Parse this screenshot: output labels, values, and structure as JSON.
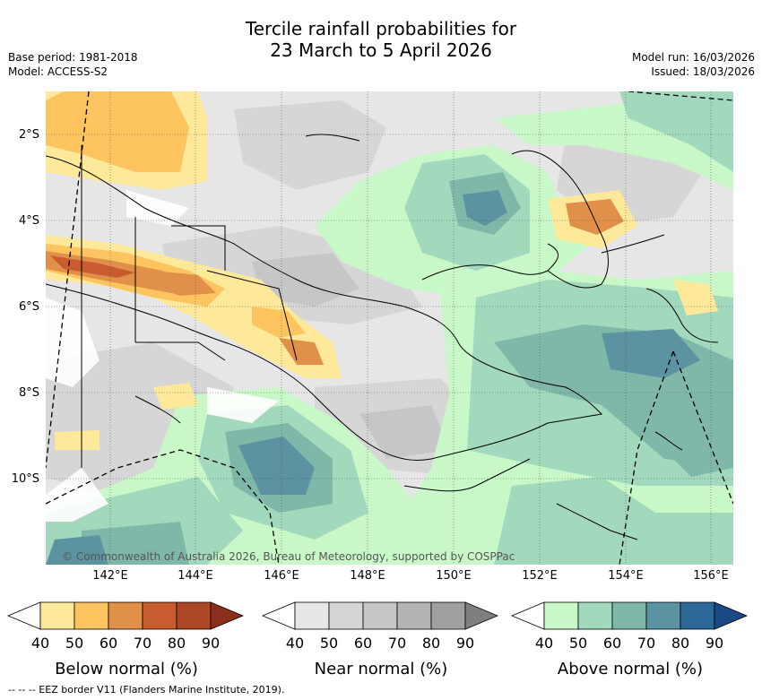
{
  "title_line1": "Tercile rainfall probabilities for",
  "title_line2": "23 March to 5 April 2026",
  "base_period": "Base period: 1981-2018",
  "model": "Model: ACCESS-S2",
  "model_run": "Model run: 16/03/2026",
  "issued": "Issued: 18/03/2026",
  "copyright": "© Commonwealth of Australia 2026, Bureau of Meteorology, supported by COSPPac",
  "lat_labels": [
    "2°S",
    "4°S",
    "6°S",
    "8°S",
    "10°S"
  ],
  "lon_labels": [
    "142°E",
    "144°E",
    "146°E",
    "148°E",
    "150°E",
    "152°E",
    "154°E",
    "156°E"
  ],
  "colorbars": [
    {
      "title": "Below normal (%)",
      "ticks": [
        "40",
        "50",
        "60",
        "70",
        "80",
        "90"
      ],
      "colors": [
        "#ffffff",
        "#fee89a",
        "#fdc45f",
        "#e1904a",
        "#c95c2e",
        "#ad4826",
        "#8c2e1a"
      ]
    },
    {
      "title": "Near normal (%)",
      "ticks": [
        "40",
        "50",
        "60",
        "70",
        "80",
        "90"
      ],
      "colors": [
        "#ffffff",
        "#e6e6e6",
        "#d6d6d6",
        "#c6c6c6",
        "#b4b4b4",
        "#a0a0a0",
        "#7e7e7e"
      ]
    },
    {
      "title": "Above normal (%)",
      "ticks": [
        "40",
        "50",
        "60",
        "70",
        "80",
        "90"
      ],
      "colors": [
        "#ffffff",
        "#c8f8c8",
        "#a2d8bc",
        "#7fb8a8",
        "#5b93a0",
        "#2d6798",
        "#1a4a86"
      ]
    }
  ],
  "footer": "-- -- -- EEZ border V11 (Flanders Marine Institute, 2019).",
  "colors": {
    "below_50": "#fee89a",
    "below_60": "#fdc45f",
    "below_70": "#e1904a",
    "below_80": "#c95c2e",
    "near_50": "#e6e6e6",
    "near_60": "#d6d6d6",
    "near_70": "#c6c6c6",
    "above_50": "#c8f8c8",
    "above_60": "#a2d8bc",
    "above_70": "#7fb8a8",
    "above_80": "#5b93a0",
    "above_90": "#2d6798"
  }
}
